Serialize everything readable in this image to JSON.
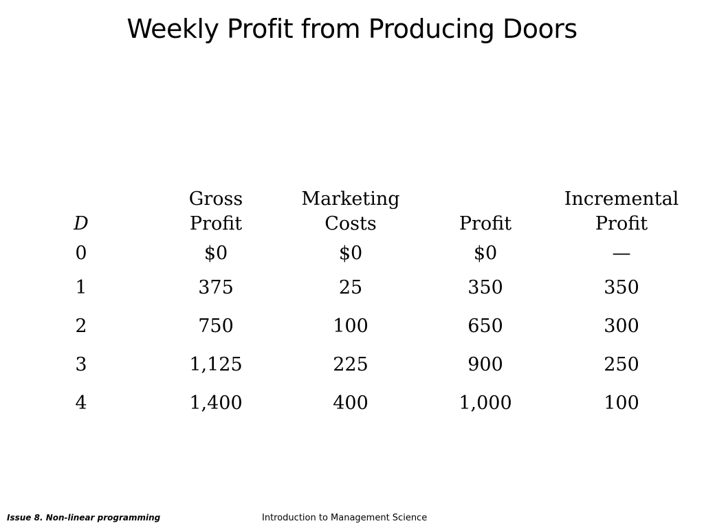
{
  "title": "Weekly Profit from Producing Doors",
  "table": {
    "headers": [
      {
        "line1": "",
        "line2": "D"
      },
      {
        "line1": "Gross",
        "line2": "Profit"
      },
      {
        "line1": "Marketing",
        "line2": "Costs"
      },
      {
        "line1": "",
        "line2": "Profit"
      },
      {
        "line1": "Incremental",
        "line2": "Profit"
      }
    ],
    "rows": [
      [
        "0",
        "$0",
        "$0",
        "$0",
        "—"
      ],
      [
        "1",
        "375",
        "25",
        "350",
        "350"
      ],
      [
        "2",
        "750",
        "100",
        "650",
        "300"
      ],
      [
        "3",
        "1,125",
        "225",
        "900",
        "250"
      ],
      [
        "4",
        "1,400",
        "400",
        "1,000",
        "100"
      ]
    ]
  },
  "footer": {
    "left": "Issue 8. Non-linear programming",
    "center": "Introduction to Management Science"
  }
}
